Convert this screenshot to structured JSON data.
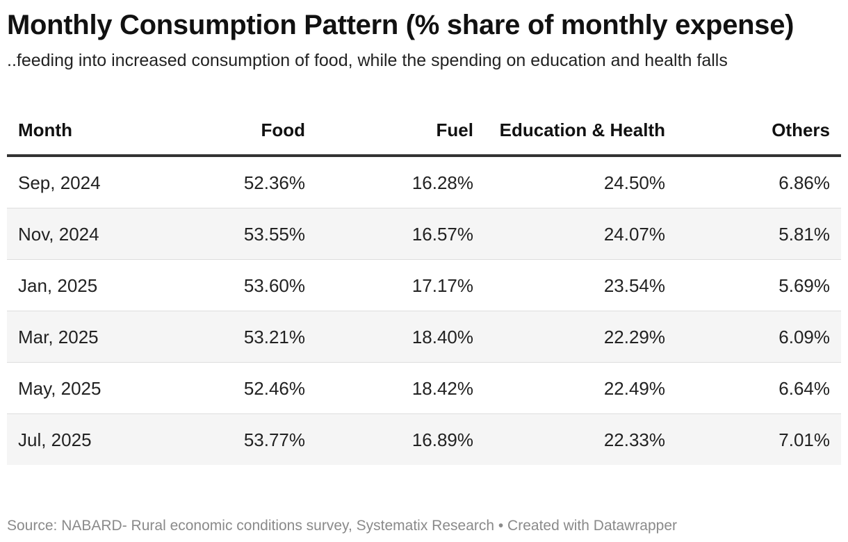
{
  "title": "Monthly Consumption Pattern (% share of monthly expense)",
  "subtitle": "..feeding into increased consumption of food, while the spending on education and health falls",
  "footer": "Source: NABARD- Rural economic conditions survey, Systematix Research • Created with Datawrapper",
  "colors": {
    "header_rule": "#333333",
    "row_stripe": "#f5f5f5",
    "row_divider": "#dddddd",
    "footer_text": "#8a8a8a"
  },
  "chart_data": {
    "type": "table",
    "title": "Monthly Consumption Pattern (% share of monthly expense)",
    "subtitle": "..feeding into increased consumption of food, while the spending on education and health falls",
    "columns": [
      "Month",
      "Food",
      "Fuel",
      "Education & Health",
      "Others"
    ],
    "rows": [
      [
        "Sep, 2024",
        "52.36%",
        "16.28%",
        "24.50%",
        "6.86%"
      ],
      [
        "Nov, 2024",
        "53.55%",
        "16.57%",
        "24.07%",
        "5.81%"
      ],
      [
        "Jan, 2025",
        "53.60%",
        "17.17%",
        "23.54%",
        "5.69%"
      ],
      [
        "Mar, 2025",
        "53.21%",
        "18.40%",
        "22.29%",
        "6.09%"
      ],
      [
        "May, 2025",
        "52.46%",
        "18.42%",
        "22.49%",
        "6.64%"
      ],
      [
        "Jul, 2025",
        "53.77%",
        "16.89%",
        "22.33%",
        "7.01%"
      ]
    ],
    "source": "Source: NABARD- Rural economic conditions survey, Systematix Research • Created with Datawrapper"
  }
}
